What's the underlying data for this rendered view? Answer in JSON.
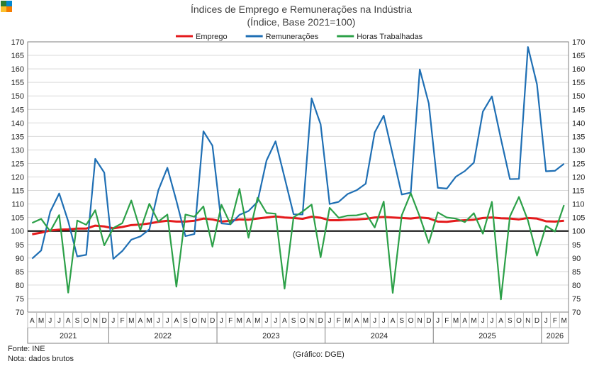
{
  "header": {
    "logo_colors": [
      "#2e7d32",
      "#0288d1",
      "#fbc02d",
      "#f57c00"
    ]
  },
  "footer": {
    "source": "Fonte: INE",
    "note": "Nota: dados brutos",
    "credit": "(Gráfico: DGE)"
  },
  "chart_data": {
    "type": "line",
    "title": "Índices de Emprego e Remunerações na Indústria",
    "subtitle": "(Índice, Base 2021=100)",
    "ylim": [
      70,
      170
    ],
    "yticks": [
      70,
      75,
      80,
      85,
      90,
      95,
      100,
      105,
      110,
      115,
      120,
      125,
      130,
      135,
      140,
      145,
      150,
      155,
      160,
      165,
      170
    ],
    "reference_line": 100,
    "legend_position": "top-center",
    "months": [
      "A",
      "M",
      "J",
      "J",
      "A",
      "S",
      "O",
      "N",
      "D",
      "J",
      "F",
      "M",
      "A",
      "M",
      "J",
      "J",
      "A",
      "S",
      "O",
      "N",
      "D",
      "J",
      "F",
      "M",
      "A",
      "M",
      "J",
      "J",
      "A",
      "S",
      "O",
      "N",
      "D",
      "J",
      "F",
      "M",
      "A",
      "M",
      "J",
      "J",
      "A",
      "S",
      "O",
      "N",
      "D",
      "J",
      "F",
      "M",
      "A",
      "M",
      "J",
      "J",
      "A",
      "S",
      "O",
      "N",
      "D",
      "J",
      "F",
      "M"
    ],
    "years": [
      {
        "label": "2021",
        "start": 0,
        "count": 9
      },
      {
        "label": "2022",
        "start": 9,
        "count": 12
      },
      {
        "label": "2023",
        "start": 21,
        "count": 12
      },
      {
        "label": "2024",
        "start": 33,
        "count": 12
      },
      {
        "label": "2025",
        "start": 45,
        "count": 12
      },
      {
        "label": "2026",
        "start": 57,
        "count": 3
      }
    ],
    "series": [
      {
        "name": "Emprego",
        "color": "#e41a1c",
        "values": [
          98.8,
          99.4,
          100.2,
          100.5,
          100.6,
          100.9,
          100.9,
          102.0,
          101.7,
          101.0,
          101.5,
          102.2,
          102.4,
          102.8,
          103.4,
          103.8,
          103.5,
          103.5,
          103.8,
          104.6,
          104.3,
          103.5,
          103.8,
          104.3,
          104.2,
          104.6,
          105.0,
          105.4,
          105.0,
          104.8,
          104.5,
          105.3,
          104.9,
          104.0,
          104.0,
          104.2,
          104.3,
          104.5,
          105.0,
          105.2,
          105.0,
          104.8,
          104.6,
          105.0,
          104.7,
          103.5,
          103.4,
          103.8,
          104.0,
          104.2,
          104.8,
          105.0,
          104.7,
          104.6,
          104.3,
          104.8,
          104.6,
          103.6,
          103.5,
          103.8
        ]
      },
      {
        "name": "Remunerações",
        "color": "#1f6fb4",
        "values": [
          89.8,
          92.8,
          107.1,
          113.9,
          103.6,
          90.6,
          91.2,
          126.7,
          121.6,
          89.7,
          92.6,
          96.8,
          98.0,
          100.6,
          115.1,
          123.4,
          111.2,
          98.1,
          98.9,
          136.9,
          131.6,
          102.8,
          102.5,
          106.0,
          107.4,
          110.8,
          126.1,
          133.2,
          119.8,
          106.2,
          106.1,
          149.1,
          139.5,
          110.0,
          110.8,
          113.7,
          115.1,
          117.5,
          136.5,
          142.7,
          128.2,
          113.5,
          114.2,
          159.8,
          147.2,
          116.0,
          115.7,
          120.1,
          122.2,
          125.3,
          144.2,
          149.8,
          134.1,
          119.2,
          119.3,
          168.1,
          154.3,
          122.1,
          122.3,
          124.9
        ]
      },
      {
        "name": "Horas Trabalhadas",
        "color": "#2ca048",
        "values": [
          103.0,
          104.5,
          99.9,
          105.9,
          77.2,
          103.9,
          102.3,
          107.7,
          94.7,
          101.1,
          102.9,
          111.3,
          100.3,
          110.1,
          103.5,
          106.1,
          79.4,
          106.1,
          105.3,
          109.1,
          94.2,
          109.7,
          102.5,
          115.6,
          97.5,
          112.3,
          106.7,
          106.4,
          78.7,
          105.1,
          107.2,
          109.8,
          90.3,
          108.6,
          104.9,
          105.7,
          105.8,
          106.6,
          101.3,
          110.9,
          77.1,
          105.8,
          114.0,
          105.3,
          95.6,
          106.9,
          105.0,
          104.6,
          103.3,
          106.6,
          99.0,
          110.8,
          74.7,
          105.4,
          112.6,
          103.9,
          90.9,
          101.9,
          99.8,
          109.6
        ]
      }
    ]
  }
}
